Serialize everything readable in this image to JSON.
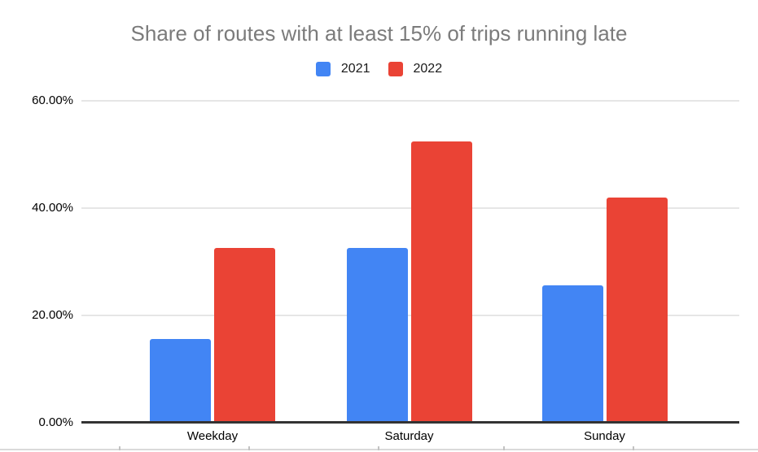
{
  "page": {
    "background_color": "#ffffff",
    "bottom_divider_color": "#dadada"
  },
  "chart_data": {
    "type": "bar",
    "title": "Share of routes with at least 15% of trips running late",
    "title_color": "#7b7b7b",
    "categories": [
      "Weekday",
      "Saturday",
      "Sunday"
    ],
    "series": [
      {
        "name": "2021",
        "color": "#4285f4",
        "values": [
          15.6,
          32.6,
          25.6
        ]
      },
      {
        "name": "2022",
        "color": "#ea4335",
        "values": [
          32.6,
          52.4,
          42.0
        ]
      }
    ],
    "value_unit": "percent",
    "ylim": [
      0,
      60
    ],
    "y_ticks": [
      {
        "value": 0,
        "label": "0.00%"
      },
      {
        "value": 20,
        "label": "20.00%"
      },
      {
        "value": 40,
        "label": "40.00%"
      },
      {
        "value": 60,
        "label": "60.00%"
      }
    ],
    "grid": true,
    "gridline_color": "#e6e6e6",
    "axis_color": "#333333",
    "legend_position": "top",
    "xlabel": "",
    "ylabel": ""
  }
}
